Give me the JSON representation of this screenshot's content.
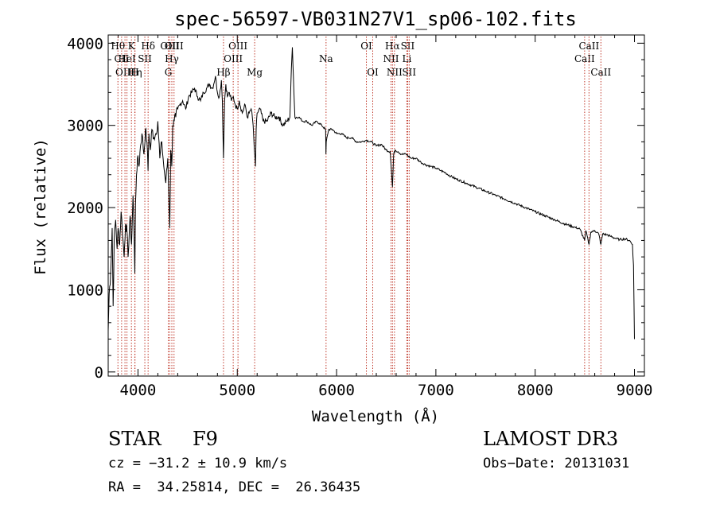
{
  "chart_data": {
    "type": "line",
    "title": "spec-56597-VB031N27V1_sp06-102.fits",
    "xlabel": "Wavelength (Å)",
    "ylabel": "Flux (relative)",
    "xlim": [
      3700,
      9100
    ],
    "ylim": [
      -50,
      4100
    ],
    "x_ticks": [
      4000,
      5000,
      6000,
      7000,
      8000,
      9000
    ],
    "y_ticks": [
      0,
      1000,
      2000,
      3000,
      4000
    ],
    "grid": false,
    "series": [
      {
        "name": "flux",
        "x": [
          3700,
          3710,
          3725,
          3740,
          3750,
          3760,
          3775,
          3790,
          3800,
          3815,
          3830,
          3850,
          3860,
          3875,
          3890,
          3900,
          3920,
          3935,
          3950,
          3960,
          3968,
          3975,
          3985,
          3995,
          4010,
          4025,
          4040,
          4060,
          4075,
          4090,
          4101,
          4110,
          4125,
          4140,
          4160,
          4180,
          4200,
          4220,
          4240,
          4260,
          4280,
          4300,
          4320,
          4330,
          4340,
          4350,
          4365,
          4380,
          4400,
          4420,
          4450,
          4480,
          4510,
          4540,
          4570,
          4600,
          4630,
          4660,
          4690,
          4720,
          4750,
          4780,
          4800,
          4820,
          4840,
          4850,
          4861,
          4872,
          4885,
          4900,
          4920,
          4940,
          4960,
          4980,
          5000,
          5020,
          5050,
          5080,
          5100,
          5120,
          5140,
          5160,
          5172,
          5183,
          5190,
          5200,
          5230,
          5260,
          5300,
          5340,
          5380,
          5420,
          5460,
          5500,
          5530,
          5545,
          5555,
          5565,
          5580,
          5620,
          5660,
          5700,
          5750,
          5800,
          5850,
          5890,
          5893,
          5896,
          5920,
          5960,
          6000,
          6050,
          6100,
          6150,
          6200,
          6250,
          6300,
          6350,
          6400,
          6450,
          6500,
          6540,
          6563,
          6575,
          6590,
          6620,
          6650,
          6700,
          6750,
          6800,
          6850,
          6900,
          6950,
          7000,
          7050,
          7100,
          7150,
          7200,
          7300,
          7400,
          7500,
          7600,
          7700,
          7800,
          7900,
          8000,
          8100,
          8200,
          8300,
          8400,
          8450,
          8498,
          8510,
          8542,
          8560,
          8600,
          8640,
          8662,
          8680,
          8720,
          8760,
          8800,
          8850,
          8900,
          8950,
          8980,
          8990,
          9000
        ],
        "y": [
          500,
          950,
          1200,
          1750,
          800,
          1600,
          1850,
          1500,
          1750,
          1550,
          1950,
          1600,
          1400,
          1800,
          1700,
          1400,
          1900,
          1550,
          2150,
          1700,
          1200,
          2050,
          2400,
          2600,
          2500,
          2750,
          2900,
          2650,
          2950,
          2800,
          2450,
          2900,
          2700,
          2950,
          2850,
          2900,
          3050,
          2600,
          2800,
          2500,
          2300,
          2600,
          1750,
          2700,
          2500,
          3000,
          3050,
          3100,
          3200,
          3250,
          3300,
          3200,
          3350,
          3400,
          3450,
          3350,
          3300,
          3400,
          3450,
          3500,
          3450,
          3600,
          3400,
          3350,
          3550,
          3300,
          2600,
          3300,
          3500,
          3350,
          3400,
          3300,
          3350,
          3250,
          3200,
          3300,
          3150,
          3250,
          3100,
          3150,
          3200,
          3000,
          2700,
          2500,
          2950,
          3150,
          3200,
          3050,
          3050,
          3150,
          3100,
          3100,
          3000,
          3050,
          3100,
          3700,
          3950,
          3600,
          3100,
          3100,
          3050,
          3050,
          3000,
          3050,
          3000,
          2950,
          2650,
          2800,
          2950,
          2950,
          2900,
          2900,
          2850,
          2850,
          2800,
          2800,
          2820,
          2800,
          2750,
          2770,
          2700,
          2680,
          2250,
          2650,
          2700,
          2680,
          2650,
          2650,
          2600,
          2600,
          2550,
          2520,
          2500,
          2480,
          2450,
          2420,
          2380,
          2350,
          2300,
          2250,
          2200,
          2150,
          2100,
          2050,
          2000,
          1950,
          1900,
          1850,
          1800,
          1760,
          1740,
          1600,
          1720,
          1550,
          1700,
          1720,
          1680,
          1550,
          1680,
          1670,
          1650,
          1630,
          1610,
          1620,
          1600,
          1550,
          1300,
          400
        ]
      }
    ],
    "lines": [
      {
        "label": "Hθ",
        "wavelength": 3798,
        "row": 1
      },
      {
        "label": "CII",
        "wavelength": 3835,
        "row": 2
      },
      {
        "label": "OIII",
        "wavelength": 3869,
        "row": 3
      },
      {
        "label": "HeI",
        "wavelength": 3889,
        "row": 2
      },
      {
        "label": "K",
        "wavelength": 3934,
        "row": 1
      },
      {
        "label": "Hη",
        "wavelength": 3970,
        "row": 3
      },
      {
        "label": "H",
        "wavelength": 3968,
        "row": 3
      },
      {
        "label": "SII",
        "wavelength": 4069,
        "row": 2
      },
      {
        "label": "Hδ",
        "wavelength": 4102,
        "row": 1
      },
      {
        "label": "G",
        "wavelength": 4305,
        "row": 3
      },
      {
        "label": "OIII",
        "wavelength": 4320,
        "row": 1
      },
      {
        "label": "Hγ",
        "wavelength": 4341,
        "row": 2
      },
      {
        "label": "OIII",
        "wavelength": 4363,
        "row": 1
      },
      {
        "label": "Hβ",
        "wavelength": 4861,
        "row": 3
      },
      {
        "label": "OIII",
        "wavelength": 4959,
        "row": 2
      },
      {
        "label": "OIII",
        "wavelength": 5007,
        "row": 1
      },
      {
        "label": "Mg",
        "wavelength": 5175,
        "row": 3
      },
      {
        "label": "Na",
        "wavelength": 5894,
        "row": 2
      },
      {
        "label": "OI",
        "wavelength": 6300,
        "row": 1
      },
      {
        "label": "OI",
        "wavelength": 6364,
        "row": 3
      },
      {
        "label": "NII",
        "wavelength": 6548,
        "row": 2
      },
      {
        "label": "Hα",
        "wavelength": 6563,
        "row": 1
      },
      {
        "label": "NII",
        "wavelength": 6583,
        "row": 3
      },
      {
        "label": "SII",
        "wavelength": 6716,
        "row": 1
      },
      {
        "label": "Li",
        "wavelength": 6708,
        "row": 2
      },
      {
        "label": "SII",
        "wavelength": 6731,
        "row": 3
      },
      {
        "label": "CaII",
        "wavelength": 8498,
        "row": 2
      },
      {
        "label": "CaII",
        "wavelength": 8542,
        "row": 1
      },
      {
        "label": "CaII",
        "wavelength": 8662,
        "row": 3
      }
    ]
  },
  "info": {
    "object_class": "STAR",
    "subclass": "F9",
    "survey": "LAMOST DR3",
    "cz": "cz = −31.2 ± 10.9 km/s",
    "obs_date": "Obs−Date: 20131031",
    "coords": "RA =  34.25814, DEC =  26.36435"
  },
  "colors": {
    "axis": "#000000",
    "spectrum": "#000000",
    "line_marker": "#c0392b"
  }
}
